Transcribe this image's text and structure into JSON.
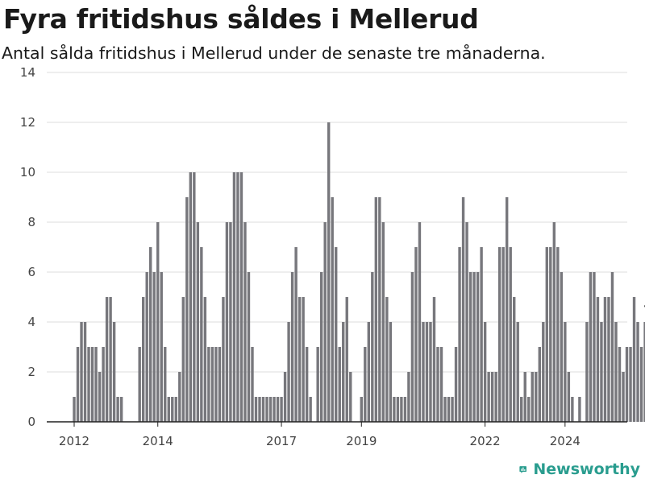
{
  "chart_data": {
    "type": "bar",
    "title": "Fyra fritidshus såldes i Mellerud",
    "subtitle": "Antal sålda fritidshus i Mellerud under de senaste tre månaderna.",
    "xlabel": "",
    "ylabel": "",
    "ylim": [
      0,
      14
    ],
    "yticks": [
      0,
      2,
      4,
      6,
      8,
      10,
      12,
      14
    ],
    "xticks": [
      "2012",
      "2014",
      "2017",
      "2019",
      "2022",
      "2024"
    ],
    "grid": true,
    "highlight_label": "4",
    "values": [
      1,
      3,
      4,
      4,
      3,
      3,
      3,
      2,
      3,
      5,
      5,
      4,
      1,
      1,
      0,
      0,
      0,
      0,
      3,
      5,
      6,
      7,
      6,
      8,
      6,
      3,
      1,
      1,
      1,
      2,
      5,
      9,
      10,
      10,
      8,
      7,
      5,
      3,
      3,
      3,
      3,
      5,
      8,
      8,
      10,
      10,
      10,
      8,
      6,
      3,
      1,
      1,
      1,
      1,
      1,
      1,
      1,
      1,
      2,
      4,
      6,
      7,
      5,
      5,
      3,
      1,
      0,
      3,
      6,
      8,
      12,
      9,
      7,
      3,
      4,
      5,
      2,
      0,
      0,
      1,
      3,
      4,
      6,
      9,
      9,
      8,
      5,
      4,
      1,
      1,
      1,
      1,
      2,
      6,
      7,
      8,
      4,
      4,
      4,
      5,
      3,
      3,
      1,
      1,
      1,
      3,
      7,
      9,
      8,
      6,
      6,
      6,
      7,
      4,
      2,
      2,
      2,
      7,
      7,
      9,
      7,
      5,
      4,
      1,
      2,
      1,
      2,
      2,
      3,
      4,
      7,
      7,
      8,
      7,
      6,
      4,
      2,
      1,
      0,
      1,
      0,
      4,
      6,
      6,
      5,
      4,
      5,
      5,
      6,
      4,
      3,
      2,
      3,
      3,
      5,
      4,
      3,
      4,
      4
    ],
    "highlight_value": 4,
    "colors": {
      "bar": "#77777c",
      "highlight": "#2a9d8f",
      "grid": "#dcdcdc",
      "axis": "#222222",
      "brand": "#2a9d8f"
    }
  },
  "brand": {
    "name": "Newsworthy",
    "icon": "bar-chart-logo-icon"
  }
}
